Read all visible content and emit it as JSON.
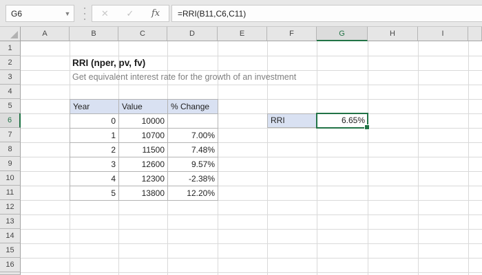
{
  "formula_bar": {
    "name_box": "G6",
    "formula": "=RRI(B11,C6,C11)",
    "icons": {
      "dropdown": "▼",
      "cancel": "✕",
      "enter": "✓",
      "fx": "fx"
    }
  },
  "grid": {
    "columns": [
      "A",
      "B",
      "C",
      "D",
      "E",
      "F",
      "G",
      "H",
      "I"
    ],
    "rows": [
      "1",
      "2",
      "3",
      "4",
      "5",
      "6",
      "7",
      "8",
      "9",
      "10",
      "11",
      "12",
      "13",
      "14",
      "15",
      "16"
    ],
    "selected_column": "G",
    "selected_row": "6"
  },
  "content": {
    "title": "RRI (nper, pv, fv)",
    "subtitle": "Get equivalent interest rate for the growth of an investment"
  },
  "table": {
    "headers": [
      "Year",
      "Value",
      "% Change"
    ],
    "rows": [
      [
        "0",
        "10000",
        ""
      ],
      [
        "1",
        "10700",
        "7.00%"
      ],
      [
        "2",
        "11500",
        "7.48%"
      ],
      [
        "3",
        "12600",
        "9.57%"
      ],
      [
        "4",
        "12300",
        "-2.38%"
      ],
      [
        "5",
        "13800",
        "12.20%"
      ]
    ]
  },
  "result": {
    "label": "RRI",
    "value": "6.65%"
  },
  "colors": {
    "selection_green": "#217346",
    "table_header_fill": "#D9E1F2",
    "header_fill": "#E6E6E6",
    "gridline": "#D9D9D9"
  }
}
